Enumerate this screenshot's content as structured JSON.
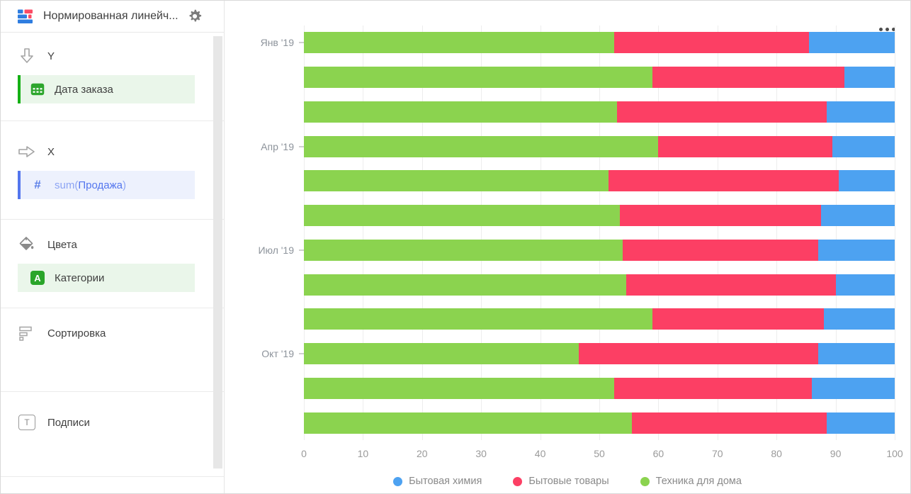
{
  "window": {
    "title": "Нормированная линейч...",
    "icons": {
      "app": "normalized-bar-chart-icon",
      "settings": "gear-icon",
      "menu": "ellipsis-icon"
    }
  },
  "sidebar": {
    "sections": [
      {
        "id": "y",
        "label": "Y",
        "icon": "arrow-down-icon",
        "fields": [
          {
            "label": "Дата заказа",
            "type": "date",
            "icon": "calendar-icon"
          }
        ]
      },
      {
        "id": "x",
        "label": "X",
        "icon": "arrow-right-icon",
        "fields": [
          {
            "prefix": "sum(",
            "name": "Продажа",
            "suffix": ")",
            "type": "measure",
            "icon": "hash-icon",
            "glyph": "#"
          }
        ]
      },
      {
        "id": "colors",
        "label": "Цвета",
        "icon": "paint-bucket-icon",
        "fields": [
          {
            "label": "Категории",
            "type": "string",
            "icon": "letter-a-icon",
            "glyph": "A"
          }
        ]
      },
      {
        "id": "sort",
        "label": "Сортировка",
        "icon": "sort-bars-icon",
        "fields": []
      },
      {
        "id": "labels",
        "label": "Подписи",
        "icon": "text-box-icon",
        "glyph": "T",
        "fields": []
      }
    ]
  },
  "chart_data": {
    "type": "bar",
    "orientation": "horizontal",
    "stacked": true,
    "normalized": true,
    "title": "",
    "xlabel": "",
    "ylabel": "",
    "xlim": [
      0,
      100
    ],
    "grid": true,
    "legend_position": "bottom",
    "categories": [
      "Янв '19",
      "",
      "",
      "Апр '19",
      "",
      "",
      "Июл '19",
      "",
      "",
      "Окт '19",
      "",
      ""
    ],
    "x_ticks": [
      "0",
      "10",
      "20",
      "30",
      "40",
      "50",
      "60",
      "70",
      "80",
      "90",
      "100"
    ],
    "series": [
      {
        "name": "Техника для дома",
        "color": "#8bd34f",
        "values": [
          52.5,
          59.0,
          53.0,
          60.0,
          51.5,
          53.5,
          54.0,
          54.5,
          59.0,
          46.5,
          52.5,
          55.5
        ]
      },
      {
        "name": "Бытовые товары",
        "color": "#fc3f64",
        "values": [
          33.0,
          32.5,
          35.5,
          29.5,
          39.0,
          34.0,
          33.0,
          35.5,
          29.0,
          40.5,
          33.5,
          33.0
        ]
      },
      {
        "name": "Бытовая химия",
        "color": "#4da2f1",
        "values": [
          14.5,
          8.5,
          11.5,
          10.5,
          9.5,
          12.5,
          13.0,
          10.0,
          12.0,
          13.0,
          14.0,
          11.5
        ]
      }
    ],
    "legend": [
      {
        "label": "Бытовая химия",
        "color": "#4da2f1"
      },
      {
        "label": "Бытовые товары",
        "color": "#fc3f64"
      },
      {
        "label": "Техника для дома",
        "color": "#8bd34f"
      }
    ]
  },
  "colors": {
    "bar_green": "#8bd34f",
    "bar_red": "#fc3f64",
    "bar_blue": "#4da2f1",
    "chip_green_bg": "#eaf6ea",
    "chip_green_border": "#15b015",
    "chip_blue_bg": "#edf1fd",
    "chip_blue_border": "#5476ee",
    "gridline": "#ededed",
    "axis_text": "#9a9a9a"
  }
}
